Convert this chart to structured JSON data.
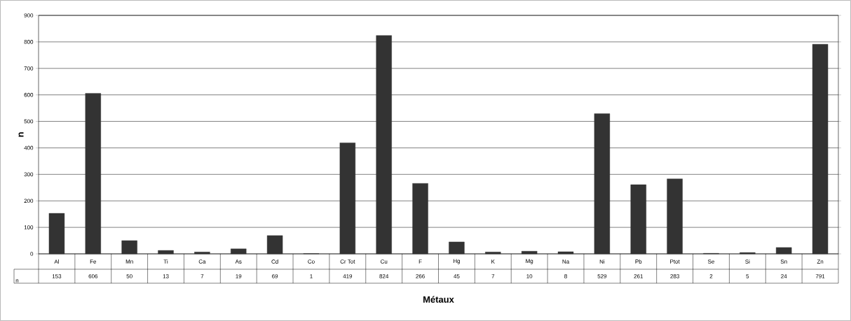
{
  "chart_data": {
    "type": "bar",
    "xlabel": "Métaux",
    "ylabel": "n",
    "categories": [
      "Al",
      "Fe",
      "Mn",
      "Ti",
      "Ca",
      "As",
      "Cd",
      "Co",
      "Cr Tot",
      "Cu",
      "F",
      "Hg",
      "K",
      "Mg",
      "Na",
      "Ni",
      "Pb",
      "Ptot",
      "Se",
      "Si",
      "Sn",
      "Zn"
    ],
    "series": [
      {
        "name": "n",
        "color": "#333333",
        "values": [
          153,
          606,
          50,
          13,
          7,
          19,
          69,
          1,
          419,
          824,
          266,
          45,
          7,
          10,
          8,
          529,
          261,
          283,
          2,
          5,
          24,
          791
        ]
      }
    ],
    "ylim": [
      0,
      900
    ],
    "yticks": [
      0,
      100,
      200,
      300,
      400,
      500,
      600,
      700,
      800,
      900
    ],
    "grid": "y",
    "data_labels": true
  }
}
